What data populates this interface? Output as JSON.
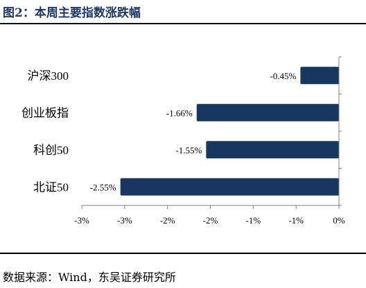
{
  "title": "图2：本周主要指数涨跌幅",
  "source": "数据来源：Wind，东吴证券研究所",
  "colors": {
    "bar": "#17375e",
    "title": "#1f3864",
    "axis": "#7f7f7f"
  },
  "chart_data": {
    "type": "bar",
    "orientation": "horizontal",
    "categories": [
      "沪深300",
      "创业板指",
      "科创50",
      "北证50"
    ],
    "values": [
      -0.45,
      -1.66,
      -1.55,
      -2.55
    ],
    "data_labels": [
      "-0.45%",
      "-1.66%",
      "-1.55%",
      "-2.55%"
    ],
    "xlim": [
      -3,
      0
    ],
    "x_ticks": [
      -3,
      -2.5,
      -2,
      -1.5,
      -1,
      -0.5,
      0
    ],
    "x_tick_labels": [
      "-3%",
      "-3%",
      "-2%",
      "-2%",
      "-1%",
      "-1%",
      "0%"
    ],
    "grid": false,
    "legend": "none"
  }
}
